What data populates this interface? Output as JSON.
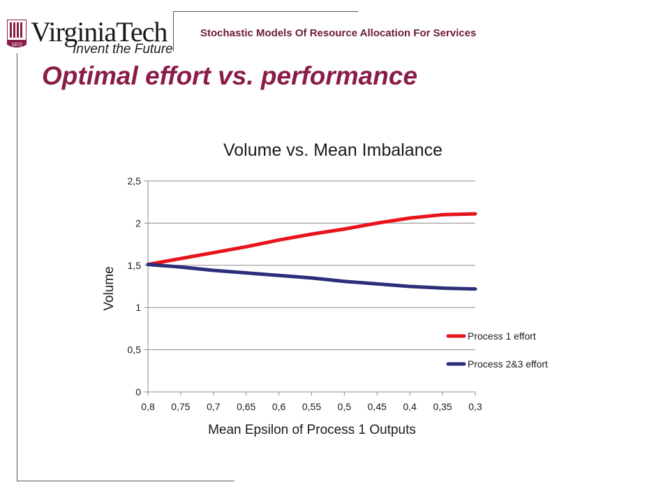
{
  "header": {
    "logo_word": "VirginiaTech",
    "logo_tagline": "Invent the Future",
    "logo_year": "1872",
    "course_title": "Stochastic Models Of Resource Allocation For Services",
    "slide_title": "Optimal effort vs. performance"
  },
  "colors": {
    "brand_maroon": "#8a1c48",
    "series1": "#e8141c",
    "series2": "#2b2f7a",
    "gridline": "#8c8c8c"
  },
  "chart_data": {
    "type": "line",
    "title": "Volume vs. Mean Imbalance",
    "xlabel": "Mean Epsilon of Process 1 Outputs",
    "ylabel": "Volume",
    "x": [
      "0,8",
      "0,75",
      "0,7",
      "0,65",
      "0,6",
      "0,55",
      "0,5",
      "0,45",
      "0,4",
      "0,35",
      "0,3"
    ],
    "ylim": [
      0,
      2.5
    ],
    "yticks": [
      0,
      0.5,
      1,
      1.5,
      2,
      2.5
    ],
    "ytick_labels": [
      "0",
      "0,5",
      "1",
      "1,5",
      "2",
      "2,5"
    ],
    "grid": true,
    "legend_position": "right",
    "series": [
      {
        "name": "Process 1 effort",
        "values": [
          1.51,
          1.58,
          1.65,
          1.72,
          1.8,
          1.87,
          1.93,
          2.0,
          2.06,
          2.1,
          2.11
        ]
      },
      {
        "name": "Process 2&3 effort",
        "values": [
          1.51,
          1.48,
          1.44,
          1.41,
          1.38,
          1.35,
          1.31,
          1.28,
          1.25,
          1.23,
          1.22
        ]
      }
    ]
  }
}
